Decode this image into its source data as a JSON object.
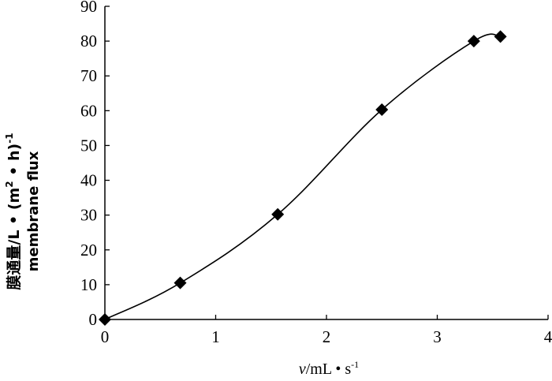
{
  "chart_data": {
    "type": "scatter",
    "title": "",
    "xlabel_italic": "v",
    "xlabel_rest": "/mL • s",
    "xlabel_sup": "-1",
    "ylabel_line1": "膜通量/L • (m",
    "ylabel_sup1": "2",
    "ylabel_mid": " • h)",
    "ylabel_sup2": "-1",
    "ylabel_line2": "membrane flux",
    "xlim": [
      0,
      4
    ],
    "ylim": [
      0,
      90
    ],
    "x_ticks": [
      "0",
      "1",
      "2",
      "3",
      "4"
    ],
    "y_ticks": [
      "0",
      "10",
      "20",
      "30",
      "40",
      "50",
      "60",
      "70",
      "80",
      "90"
    ],
    "grid": false,
    "marker": "diamond",
    "line": "smooth",
    "color": "#000000",
    "series": [
      {
        "x": [
          0,
          0.68,
          1.56,
          2.5,
          3.33,
          3.57
        ],
        "y": [
          0,
          10.5,
          30.2,
          60.3,
          80.0,
          81.3
        ]
      }
    ]
  }
}
